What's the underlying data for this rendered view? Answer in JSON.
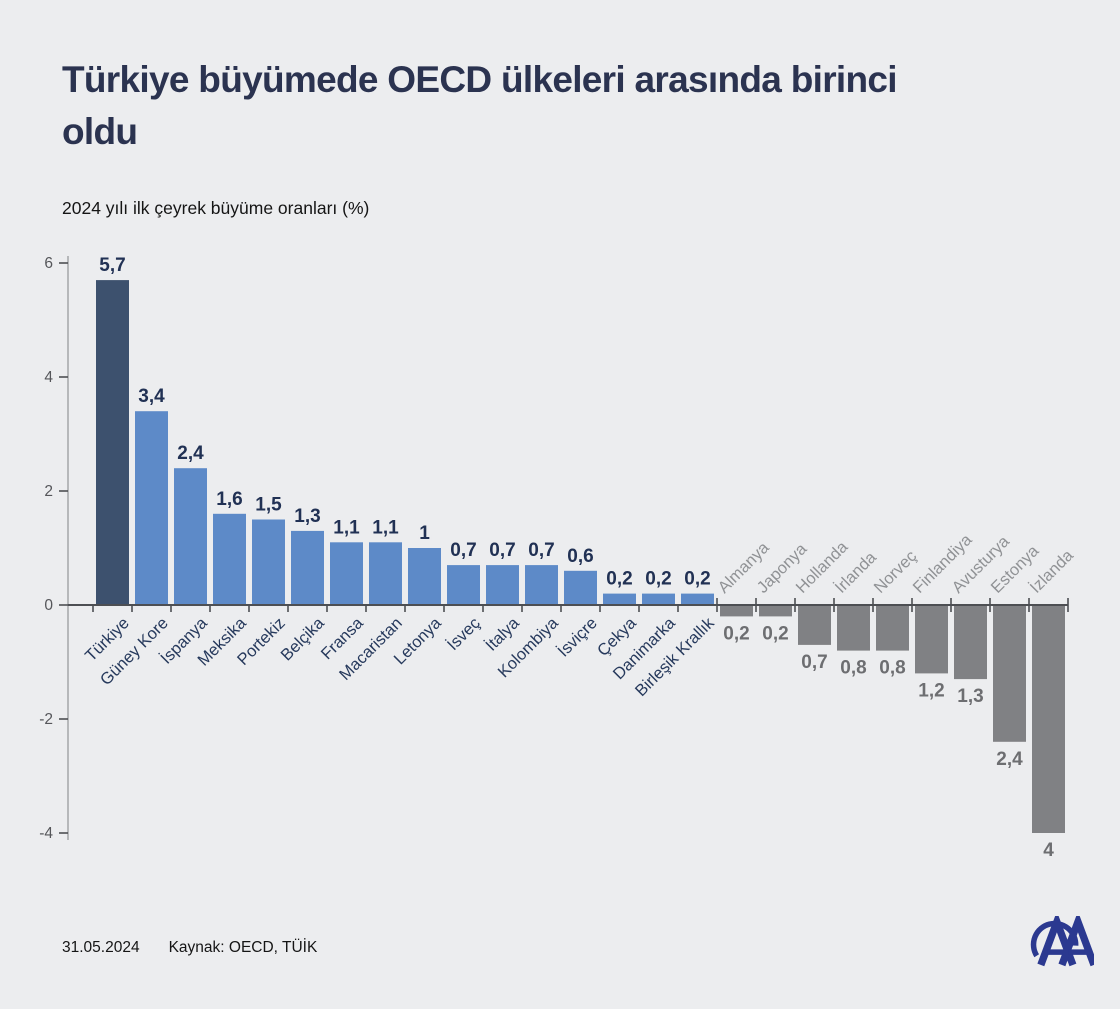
{
  "title": "Türkiye büyümede OECD ülkeleri arasında birinci oldu",
  "subtitle": "2024 yılı ilk çeyrek büyüme oranları (%)",
  "footer": {
    "date": "31.05.2024",
    "source": "Kaynak: OECD, TÜİK"
  },
  "logo_name": "anadolu-agency-logo",
  "colors": {
    "background": "#ecedef",
    "title": "#2b3350",
    "bar_highlight": "#3d516e",
    "bar_positive": "#5d8ac8",
    "bar_negative": "#808184",
    "value_positive": "#213154",
    "value_negative": "#6d6e71",
    "category_positive": "#26395c",
    "category_negative": "#909295",
    "axis": "#4d4f53",
    "y_axis_line": "#a8aaad",
    "y_tick_label": "#55565a",
    "logo_blue": "#2b3990"
  },
  "chart_data": {
    "type": "bar",
    "title": "2024 yılı ilk çeyrek büyüme oranları (%)",
    "xlabel": "",
    "ylabel": "",
    "ylim": [
      -4,
      6
    ],
    "yticks": [
      6,
      4,
      2,
      0,
      -2,
      -4
    ],
    "grid": false,
    "legend": "none",
    "highlight_index": 0,
    "categories": [
      "Türkiye",
      "Güney Kore",
      "İspanya",
      "Meksika",
      "Portekiz",
      "Belçika",
      "Fransa",
      "Macaristan",
      "Letonya",
      "İsveç",
      "İtalya",
      "Kolombiya",
      "İsviçre",
      "Çekya",
      "Danimarka",
      "Birleşik Krallık",
      "Almanya",
      "Japonya",
      "Hollanda",
      "İrlanda",
      "Norveç",
      "Finlandiya",
      "Avusturya",
      "Estonya",
      "İzlanda"
    ],
    "values": [
      5.7,
      3.4,
      2.4,
      1.6,
      1.5,
      1.3,
      1.1,
      1.1,
      1,
      0.7,
      0.7,
      0.7,
      0.6,
      0.2,
      0.2,
      0.2,
      -0.2,
      -0.2,
      -0.7,
      -0.8,
      -0.8,
      -1.2,
      -1.3,
      -2.4,
      -4
    ],
    "value_labels": [
      "5,7",
      "3,4",
      "2,4",
      "1,6",
      "1,5",
      "1,3",
      "1,1",
      "1,1",
      "1",
      "0,7",
      "0,7",
      "0,7",
      "0,6",
      "0,2",
      "0,2",
      "0,2",
      "0,2",
      "0,2",
      "0,7",
      "0,8",
      "0,8",
      "1,2",
      "1,3",
      "2,4",
      "4"
    ]
  }
}
